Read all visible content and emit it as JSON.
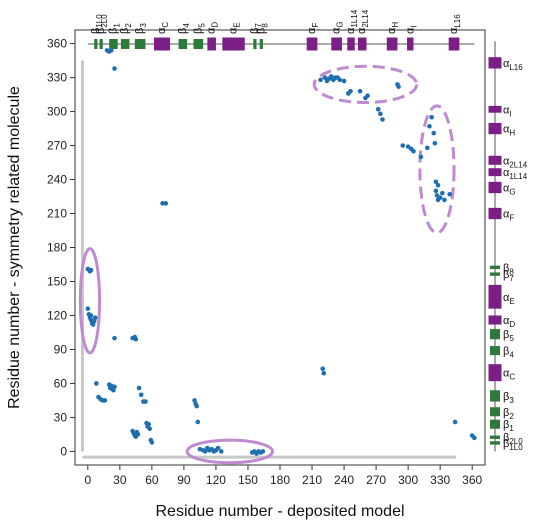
{
  "chart_data": {
    "type": "scatter",
    "xlabel": "Residue number - deposited model",
    "ylabel": "Residue number - symmetry related molecule",
    "xlim": [
      -12,
      372
    ],
    "ylim": [
      -12,
      372
    ],
    "xticks": [
      0,
      30,
      60,
      90,
      120,
      150,
      180,
      210,
      240,
      270,
      300,
      330,
      360
    ],
    "yticks": [
      0,
      30,
      60,
      90,
      120,
      150,
      180,
      210,
      240,
      270,
      300,
      330,
      360
    ],
    "grid": false,
    "point_color": "#1f6fb0",
    "points": [
      [
        18,
        354
      ],
      [
        20,
        353
      ],
      [
        22,
        354
      ],
      [
        25,
        338
      ],
      [
        0,
        161
      ],
      [
        2,
        159
      ],
      [
        3,
        160
      ],
      [
        0,
        126
      ],
      [
        1,
        121
      ],
      [
        2,
        118
      ],
      [
        3,
        116
      ],
      [
        4,
        113
      ],
      [
        5,
        112
      ],
      [
        6,
        115
      ],
      [
        7,
        118
      ],
      [
        3,
        120
      ],
      [
        70,
        219
      ],
      [
        73,
        219
      ],
      [
        220,
        73
      ],
      [
        221,
        69
      ],
      [
        25,
        100
      ],
      [
        42,
        100
      ],
      [
        44,
        101
      ],
      [
        45,
        99
      ],
      [
        8,
        60
      ],
      [
        10,
        48
      ],
      [
        12,
        46
      ],
      [
        14,
        45
      ],
      [
        16,
        45
      ],
      [
        20,
        59
      ],
      [
        21,
        56
      ],
      [
        22,
        58
      ],
      [
        23,
        55
      ],
      [
        24,
        54
      ],
      [
        25,
        57
      ],
      [
        42,
        18
      ],
      [
        43,
        16
      ],
      [
        44,
        14
      ],
      [
        45,
        13
      ],
      [
        46,
        17
      ],
      [
        47,
        15
      ],
      [
        48,
        56
      ],
      [
        50,
        50
      ],
      [
        52,
        44
      ],
      [
        54,
        44
      ],
      [
        55,
        25
      ],
      [
        56,
        22
      ],
      [
        57,
        24
      ],
      [
        58,
        20
      ],
      [
        59,
        10
      ],
      [
        60,
        8
      ],
      [
        100,
        45
      ],
      [
        101,
        42
      ],
      [
        102,
        40
      ],
      [
        103,
        26
      ],
      [
        105,
        2
      ],
      [
        108,
        1
      ],
      [
        110,
        0
      ],
      [
        112,
        3
      ],
      [
        114,
        1
      ],
      [
        116,
        2
      ],
      [
        118,
        0
      ],
      [
        120,
        1
      ],
      [
        122,
        3
      ],
      [
        125,
        0
      ],
      [
        154,
        -1
      ],
      [
        156,
        0
      ],
      [
        158,
        -2
      ],
      [
        160,
        0
      ],
      [
        162,
        -1
      ],
      [
        164,
        0
      ],
      [
        218,
        328
      ],
      [
        222,
        330
      ],
      [
        224,
        327
      ],
      [
        226,
        329
      ],
      [
        228,
        331
      ],
      [
        230,
        328
      ],
      [
        232,
        330
      ],
      [
        234,
        330
      ],
      [
        236,
        328
      ],
      [
        240,
        327
      ],
      [
        244,
        316
      ],
      [
        246,
        318
      ],
      [
        255,
        318
      ],
      [
        260,
        312
      ],
      [
        262,
        314
      ],
      [
        272,
        302
      ],
      [
        274,
        298
      ],
      [
        276,
        293
      ],
      [
        290,
        324
      ],
      [
        291,
        322
      ],
      [
        295,
        270
      ],
      [
        300,
        269
      ],
      [
        303,
        267
      ],
      [
        305,
        265
      ],
      [
        312,
        260
      ],
      [
        318,
        268
      ],
      [
        320,
        287
      ],
      [
        322,
        295
      ],
      [
        324,
        281
      ],
      [
        325,
        272
      ],
      [
        326,
        238
      ],
      [
        328,
        235
      ],
      [
        326,
        230
      ],
      [
        327,
        226
      ],
      [
        328,
        222
      ],
      [
        330,
        224
      ],
      [
        332,
        228
      ],
      [
        334,
        222
      ],
      [
        339,
        227
      ],
      [
        344,
        26
      ],
      [
        360,
        14
      ],
      [
        362,
        12
      ]
    ],
    "circles": [
      {
        "cx": 2,
        "cy": 133,
        "rx": 9,
        "ry": 46
      },
      {
        "cx": 133,
        "cy": 0,
        "rx": 40,
        "ry": 10
      },
      {
        "cx": 260,
        "cy": 324,
        "rx": 48,
        "ry": 16
      },
      {
        "cx": 327,
        "cy": 249,
        "rx": 16,
        "ry": 56
      }
    ],
    "circle_color": "#c08ad0",
    "helix_color": "#7b1f86",
    "strand_color": "#2d7a3a",
    "structure": [
      {
        "name": "β1L0",
        "type": "strand",
        "start": 6,
        "end": 9
      },
      {
        "name": "β2L0",
        "type": "strand",
        "start": 11,
        "end": 14
      },
      {
        "name": "β1",
        "type": "strand",
        "start": 20,
        "end": 28
      },
      {
        "name": "β2",
        "type": "strand",
        "start": 31,
        "end": 39
      },
      {
        "name": "β3",
        "type": "strand",
        "start": 44,
        "end": 54
      },
      {
        "name": "αC",
        "type": "helix",
        "start": 62,
        "end": 77
      },
      {
        "name": "β4",
        "type": "strand",
        "start": 85,
        "end": 93
      },
      {
        "name": "β5",
        "type": "strand",
        "start": 99,
        "end": 108
      },
      {
        "name": "αD",
        "type": "helix",
        "start": 112,
        "end": 120
      },
      {
        "name": "αE",
        "type": "helix",
        "start": 126,
        "end": 147
      },
      {
        "name": "β7",
        "type": "strand",
        "start": 155,
        "end": 158
      },
      {
        "name": "β8",
        "type": "strand",
        "start": 161,
        "end": 164
      },
      {
        "name": "αF",
        "type": "helix",
        "start": 205,
        "end": 215
      },
      {
        "name": "αG",
        "type": "helix",
        "start": 228,
        "end": 238
      },
      {
        "name": "α1L14",
        "type": "helix",
        "start": 243,
        "end": 250
      },
      {
        "name": "α2L14",
        "type": "helix",
        "start": 253,
        "end": 261
      },
      {
        "name": "αH",
        "type": "helix",
        "start": 280,
        "end": 290
      },
      {
        "name": "αI",
        "type": "helix",
        "start": 299,
        "end": 305
      },
      {
        "name": "αL16",
        "type": "helix",
        "start": 338,
        "end": 348
      }
    ]
  }
}
